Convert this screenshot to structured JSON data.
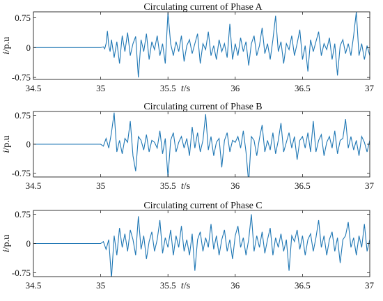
{
  "chart_data": [
    {
      "type": "line",
      "title": "Circulating current of Phase A",
      "xlabel_italic": "t",
      "xlabel_unit": "/s",
      "ylabel_italic": "i",
      "ylabel_unit": "/p.u",
      "xlim": [
        34.5,
        37
      ],
      "ylim": [
        -0.8,
        0.9
      ],
      "xticks": [
        34.5,
        35,
        35.5,
        36,
        36.5,
        37
      ],
      "xtick_labels": [
        "34.5",
        "35",
        "35.5",
        "36",
        "36.5",
        "37"
      ],
      "yticks": [
        0.75,
        0,
        -0.75
      ],
      "ytick_labels": [
        "0.75",
        "0",
        "-0.75"
      ],
      "grid": false,
      "line_color": "#1f77b4",
      "series": [
        {
          "x": [
            34.5,
            35.0,
            35.02,
            35.03,
            35.04,
            35.05,
            35.06,
            35.07,
            35.08,
            35.1,
            35.12,
            35.14,
            35.16,
            35.18,
            35.2,
            35.22,
            35.24,
            35.26,
            35.28,
            35.3,
            35.32,
            35.34,
            35.36,
            35.38,
            35.4,
            35.42,
            35.44,
            35.46,
            35.48,
            35.5,
            35.52,
            35.54,
            35.56,
            35.58,
            35.6,
            35.62,
            35.64,
            35.66,
            35.68,
            35.7,
            35.72,
            35.74,
            35.76,
            35.78,
            35.8,
            35.82,
            35.84,
            35.86,
            35.88,
            35.9,
            35.92,
            35.94,
            35.96,
            35.98,
            36.0,
            36.02,
            36.04,
            36.06,
            36.08,
            36.1,
            36.12,
            36.14,
            36.16,
            36.18,
            36.2,
            36.22,
            36.24,
            36.26,
            36.28,
            36.3,
            36.32,
            36.34,
            36.36,
            36.38,
            36.4,
            36.42,
            36.44,
            36.46,
            36.48,
            36.5,
            36.52,
            36.54,
            36.56,
            36.58,
            36.6,
            36.62,
            36.64,
            36.66,
            36.68,
            36.7,
            36.72,
            36.74,
            36.76,
            36.78,
            36.8,
            36.82,
            36.84,
            36.86,
            36.88,
            36.9,
            36.92,
            36.94,
            36.96,
            36.98,
            37.0
          ],
          "y": [
            0,
            0,
            0.02,
            -0.03,
            0.1,
            0.42,
            0.05,
            -0.1,
            0.2,
            -0.25,
            0.15,
            -0.4,
            0.3,
            -0.1,
            0.38,
            -0.2,
            0.1,
            0.28,
            -0.75,
            0.2,
            -0.1,
            0.35,
            -0.3,
            0.15,
            -0.05,
            0.3,
            -0.2,
            0.1,
            -0.4,
            0.88,
            0.1,
            -0.2,
            0.15,
            -0.1,
            0.3,
            -0.35,
            0.05,
            0.2,
            -0.15,
            0.1,
            0.35,
            -0.4,
            0.1,
            -0.05,
            0.4,
            -0.2,
            0.05,
            -0.3,
            0.2,
            -0.1,
            0.1,
            -0.25,
            0.6,
            -0.3,
            0.1,
            -0.2,
            0.25,
            -0.1,
            0.15,
            -0.45,
            0.1,
            0.3,
            -0.2,
            0.05,
            0.5,
            -0.15,
            0.1,
            -0.3,
            0.2,
            0.8,
            -0.1,
            0.15,
            -0.4,
            0.1,
            -0.05,
            0.3,
            -0.2,
            0.1,
            0.45,
            -0.3,
            0.05,
            -0.6,
            0.2,
            -0.1,
            0.15,
            0.4,
            -0.2,
            0.1,
            -0.05,
            0.25,
            -0.3,
            0.1,
            -0.7,
            0.05,
            0.2,
            -0.15,
            0.1,
            -0.2,
            0.3,
            0.9,
            -0.2,
            0.1,
            -0.3,
            0.05,
            -0.2
          ]
        }
      ]
    },
    {
      "type": "line",
      "title": "Circulating current of Phase B",
      "xlabel_italic": "t",
      "xlabel_unit": "/s",
      "ylabel_italic": "i",
      "ylabel_unit": "/p.u",
      "xlim": [
        34.5,
        37
      ],
      "ylim": [
        -0.85,
        0.85
      ],
      "xticks": [
        34.5,
        35,
        35.5,
        36,
        36.5,
        37
      ],
      "xtick_labels": [
        "34.5",
        "35",
        "35.5",
        "36",
        "36.5",
        "37"
      ],
      "yticks": [
        0.75,
        0,
        -0.75
      ],
      "ytick_labels": [
        "0.75",
        "0",
        "-0.75"
      ],
      "grid": false,
      "line_color": "#1f77b4",
      "series": [
        {
          "x": [
            34.5,
            35.0,
            35.02,
            35.04,
            35.06,
            35.08,
            35.1,
            35.12,
            35.14,
            35.16,
            35.18,
            35.2,
            35.22,
            35.24,
            35.26,
            35.28,
            35.3,
            35.32,
            35.34,
            35.36,
            35.38,
            35.4,
            35.42,
            35.44,
            35.46,
            35.48,
            35.5,
            35.52,
            35.54,
            35.56,
            35.58,
            35.6,
            35.62,
            35.64,
            35.66,
            35.68,
            35.7,
            35.72,
            35.74,
            35.76,
            35.78,
            35.8,
            35.82,
            35.84,
            35.86,
            35.88,
            35.9,
            35.92,
            35.94,
            35.96,
            35.98,
            36.0,
            36.02,
            36.04,
            36.06,
            36.08,
            36.1,
            36.12,
            36.14,
            36.16,
            36.18,
            36.2,
            36.22,
            36.24,
            36.26,
            36.28,
            36.3,
            36.32,
            36.34,
            36.36,
            36.38,
            36.4,
            36.42,
            36.44,
            36.46,
            36.48,
            36.5,
            36.52,
            36.54,
            36.56,
            36.58,
            36.6,
            36.62,
            36.64,
            36.66,
            36.68,
            36.7,
            36.72,
            36.74,
            36.76,
            36.78,
            36.8,
            36.82,
            36.84,
            36.86,
            36.88,
            36.9,
            36.92,
            36.94,
            36.96,
            36.98,
            37.0
          ],
          "y": [
            0,
            0,
            -0.05,
            0.15,
            -0.1,
            0.3,
            0.82,
            -0.2,
            0.1,
            -0.25,
            0.15,
            0.05,
            0.6,
            -0.3,
            -0.7,
            0.2,
            0.1,
            -0.15,
            0.25,
            -0.2,
            0.1,
            0.05,
            -0.1,
            0.35,
            -0.25,
            0.15,
            -0.85,
            0.1,
            0.3,
            -0.2,
            0.05,
            0.2,
            -0.1,
            0.15,
            -0.3,
            0.45,
            -0.1,
            0.3,
            -0.2,
            0.1,
            0.78,
            -0.15,
            0.2,
            -0.3,
            0.05,
            0.15,
            -0.6,
            0.1,
            0.3,
            -0.2,
            0.1,
            0.05,
            0.2,
            -0.1,
            0.35,
            -0.2,
            -1.0,
            0.2,
            0.1,
            -0.3,
            0.15,
            0.5,
            -0.2,
            0.1,
            -0.15,
            0.3,
            -0.25,
            0.1,
            0.55,
            -0.2,
            0.05,
            0.3,
            -0.1,
            0.2,
            -0.4,
            0.1,
            0.2,
            -0.1,
            0.3,
            -0.2,
            0.6,
            -0.2,
            0.1,
            0.25,
            -0.3,
            0.05,
            0.2,
            -0.1,
            0.35,
            -0.25,
            0.1,
            0.15,
            0.65,
            -0.1,
            0.2,
            -0.15,
            0.1,
            -0.3,
            0.2,
            0.05,
            -0.2,
            0.1
          ]
        }
      ]
    },
    {
      "type": "line",
      "title": "Circulating current of Phase C",
      "xlabel_italic": "t",
      "xlabel_unit": "/s",
      "ylabel_italic": "i",
      "ylabel_unit": "/p.u",
      "xlim": [
        34.5,
        37
      ],
      "ylim": [
        -0.85,
        0.85
      ],
      "xticks": [
        34.5,
        35,
        35.5,
        36,
        36.5,
        37
      ],
      "xtick_labels": [
        "34.5",
        "35",
        "35.5",
        "36",
        "36.5",
        "37"
      ],
      "yticks": [
        0.75,
        0,
        -0.75
      ],
      "ytick_labels": [
        "0.75",
        "0",
        "-0.75"
      ],
      "grid": false,
      "line_color": "#1f77b4",
      "series": [
        {
          "x": [
            34.5,
            35.0,
            35.02,
            35.04,
            35.06,
            35.08,
            35.1,
            35.12,
            35.14,
            35.16,
            35.18,
            35.2,
            35.22,
            35.24,
            35.26,
            35.28,
            35.3,
            35.32,
            35.34,
            35.36,
            35.38,
            35.4,
            35.42,
            35.44,
            35.46,
            35.48,
            35.5,
            35.52,
            35.54,
            35.56,
            35.58,
            35.6,
            35.62,
            35.64,
            35.66,
            35.68,
            35.7,
            35.72,
            35.74,
            35.76,
            35.78,
            35.8,
            35.82,
            35.84,
            35.86,
            35.88,
            35.9,
            35.92,
            35.94,
            35.96,
            35.98,
            36.0,
            36.02,
            36.04,
            36.06,
            36.08,
            36.1,
            36.12,
            36.14,
            36.16,
            36.18,
            36.2,
            36.22,
            36.24,
            36.26,
            36.28,
            36.3,
            36.32,
            36.34,
            36.36,
            36.38,
            36.4,
            36.42,
            36.44,
            36.46,
            36.48,
            36.5,
            36.52,
            36.54,
            36.56,
            36.58,
            36.6,
            36.62,
            36.64,
            36.66,
            36.68,
            36.7,
            36.72,
            36.74,
            36.76,
            36.78,
            36.8,
            36.82,
            36.84,
            36.86,
            36.88,
            36.9,
            36.92,
            36.94,
            36.96,
            36.98,
            37.0
          ],
          "y": [
            0,
            0,
            0.05,
            -0.15,
            0.1,
            -0.9,
            0.2,
            -0.3,
            0.4,
            -0.1,
            0.25,
            -0.2,
            0.35,
            0.1,
            -0.3,
            0.7,
            -0.15,
            0.2,
            -0.4,
            0.05,
            0.3,
            -0.2,
            0.1,
            0.6,
            -0.25,
            0.15,
            -0.1,
            0.35,
            -0.3,
            0.2,
            -0.1,
            0.45,
            -0.2,
            0.1,
            -0.3,
            0.25,
            -0.7,
            0.1,
            0.3,
            -0.2,
            0.15,
            -0.1,
            0.5,
            -0.15,
            0.2,
            -0.3,
            0.1,
            0.35,
            -0.2,
            0.1,
            -0.4,
            0.2,
            0.45,
            -0.1,
            0.15,
            -0.3,
            0.1,
            0.75,
            -0.2,
            0.2,
            -0.1,
            0.3,
            -0.25,
            0.1,
            0.4,
            -0.3,
            0.15,
            -0.1,
            0.25,
            -0.2,
            0.1,
            -0.7,
            0.2,
            0.05,
            0.35,
            -0.15,
            0.2,
            -0.3,
            0.1,
            0.25,
            -0.2,
            0.15,
            0.6,
            -0.1,
            0.2,
            -0.3,
            0.1,
            0.3,
            -0.2,
            0.15,
            -0.5,
            0.1,
            0.2,
            0.55,
            -0.1,
            0.15,
            -0.3,
            0.2,
            -0.1,
            0.5,
            -0.2,
            0.1
          ]
        }
      ]
    }
  ]
}
